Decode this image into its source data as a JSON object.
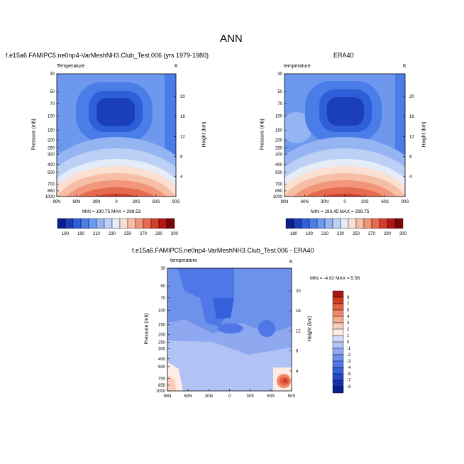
{
  "page": {
    "title": "ANN"
  },
  "panels": {
    "p1": {
      "header": "f.e15a6.FAMIPC5.ne0np4-VarMeshNH3.Club_Test.006 (yrs 1979-1980)",
      "field": "Temperature",
      "units": "K",
      "minmax": "MIN = 190.75  MAX = 298.53"
    },
    "p2": {
      "header": "ERA40",
      "field": "temperature",
      "units": "K",
      "minmax": "MIN = 193.45  MAX = 299.75"
    },
    "p3": {
      "header": "f.e15a6.FAMIPC5.ne0np4-VarMeshNH3.Club_Test.006 - ERA40",
      "field": "temperature",
      "units": "K",
      "minmax": "MIN = -4.92  MAX =  5.56"
    }
  },
  "axes": {
    "ylabel": "Pressure (mb)",
    "y2label": "Height (km)",
    "pressure_ticks": [
      "30",
      "50",
      "70",
      "100",
      "150",
      "200",
      "250",
      "300",
      "400",
      "500",
      "700",
      "850",
      "1000"
    ],
    "height_ticks": [
      "20",
      "16",
      "12",
      "8",
      "4"
    ],
    "lat_ticks": [
      "90N",
      "60N",
      "30N",
      "0",
      "30S",
      "60S",
      "90S"
    ]
  },
  "colors": {
    "abs_scale": [
      "#08208a",
      "#1a3fb8",
      "#2f5fd8",
      "#4a7de8",
      "#6d98ee",
      "#95b5f2",
      "#bcd0f5",
      "#e4ecf8",
      "#fbe0d2",
      "#f6bfa5",
      "#f1967b",
      "#e66a4e",
      "#d43c2c",
      "#b01616",
      "#7a0606"
    ],
    "diff_scale": [
      "#08208a",
      "#1433a8",
      "#2348c8",
      "#3560dc",
      "#4f78e6",
      "#6d92ec",
      "#8ea9f0",
      "#b0c3f4",
      "#d2dcf7",
      "#fcece4",
      "#f8cdb9",
      "#f4ac8f",
      "#ee8868",
      "#e4603f",
      "#cf3a22",
      "#a81616"
    ]
  },
  "chart_data": [
    {
      "type": "heatmap",
      "title": "Temperature",
      "xlabel": "",
      "ylabel": "Pressure (mb)",
      "y2label": "Height (km)",
      "x": [
        "90N",
        "60N",
        "30N",
        "0",
        "30S",
        "60S",
        "90S"
      ],
      "y": [
        30,
        50,
        70,
        100,
        150,
        200,
        250,
        300,
        400,
        500,
        700,
        850,
        1000
      ],
      "colorbar_labels": [
        "180",
        "190",
        "210",
        "230",
        "250",
        "270",
        "290",
        "300"
      ],
      "min": 190.75,
      "max": 298.53
    },
    {
      "type": "heatmap",
      "title": "ERA40",
      "xlabel": "",
      "ylabel": "Pressure (mb)",
      "y2label": "Height (km)",
      "x": [
        "90N",
        "60N",
        "30N",
        "0",
        "30S",
        "60S",
        "90S"
      ],
      "y": [
        30,
        50,
        70,
        100,
        150,
        200,
        250,
        300,
        400,
        500,
        700,
        850,
        1000
      ],
      "colorbar_labels": [
        "180",
        "190",
        "210",
        "230",
        "250",
        "270",
        "290",
        "300"
      ],
      "min": 193.45,
      "max": 299.75
    },
    {
      "type": "heatmap",
      "title": "f.e15a6.FAMIPC5.ne0np4-VarMeshNH3.Club_Test.006 - ERA40",
      "xlabel": "",
      "ylabel": "Pressure (mb)",
      "y2label": "Height (km)",
      "x": [
        "90N",
        "60N",
        "30N",
        "0",
        "30S",
        "60S",
        "90S"
      ],
      "y": [
        30,
        50,
        70,
        100,
        150,
        200,
        250,
        300,
        400,
        500,
        700,
        850,
        1000
      ],
      "colorbar_labels": [
        "9",
        "7",
        "5",
        "4",
        "3",
        "2",
        "1",
        "0",
        "-1",
        "-2",
        "-3",
        "-4",
        "-5",
        "-7",
        "-9"
      ],
      "min": -4.92,
      "max": 5.56
    }
  ]
}
